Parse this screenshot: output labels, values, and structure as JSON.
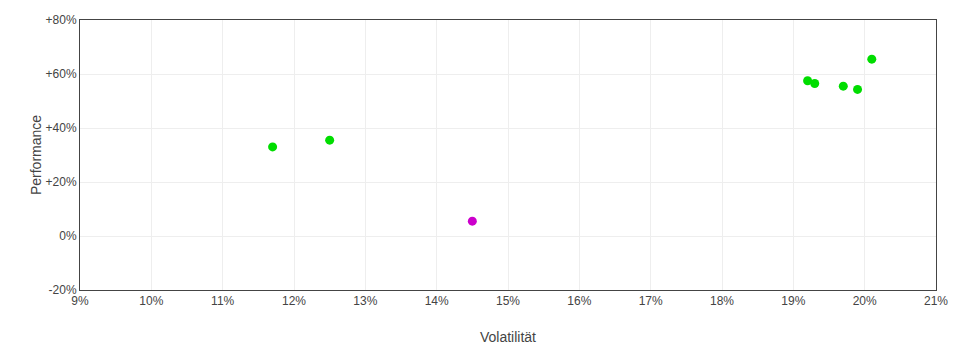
{
  "chart_data": {
    "type": "scatter",
    "xlabel": "Volatilität",
    "ylabel": "Performance",
    "xlim": [
      0.09,
      0.21
    ],
    "ylim": [
      -0.2,
      0.8
    ],
    "xticks": [
      {
        "value": 0.09,
        "label": "9%"
      },
      {
        "value": 0.1,
        "label": "10%"
      },
      {
        "value": 0.11,
        "label": "11%"
      },
      {
        "value": 0.12,
        "label": "12%"
      },
      {
        "value": 0.13,
        "label": "13%"
      },
      {
        "value": 0.14,
        "label": "14%"
      },
      {
        "value": 0.15,
        "label": "15%"
      },
      {
        "value": 0.16,
        "label": "16%"
      },
      {
        "value": 0.17,
        "label": "17%"
      },
      {
        "value": 0.18,
        "label": "18%"
      },
      {
        "value": 0.19,
        "label": "19%"
      },
      {
        "value": 0.2,
        "label": "20%"
      },
      {
        "value": 0.21,
        "label": "21%"
      }
    ],
    "yticks": [
      {
        "value": -0.2,
        "label": "-20%"
      },
      {
        "value": 0.0,
        "label": "0%"
      },
      {
        "value": 0.2,
        "label": "+20%"
      },
      {
        "value": 0.4,
        "label": "+40%"
      },
      {
        "value": 0.6,
        "label": "+60%"
      },
      {
        "value": 0.8,
        "label": "+80%"
      }
    ],
    "grid": true,
    "series": [
      {
        "color": "#00dd00",
        "marker": "circle",
        "x": [
          0.117,
          0.125,
          0.192,
          0.193,
          0.197,
          0.199,
          0.201
        ],
        "values": [
          0.33,
          0.355,
          0.575,
          0.565,
          0.555,
          0.543,
          0.655
        ]
      },
      {
        "color": "#cc00cc",
        "marker": "circle",
        "x": [
          0.145
        ],
        "values": [
          0.055
        ]
      }
    ]
  }
}
